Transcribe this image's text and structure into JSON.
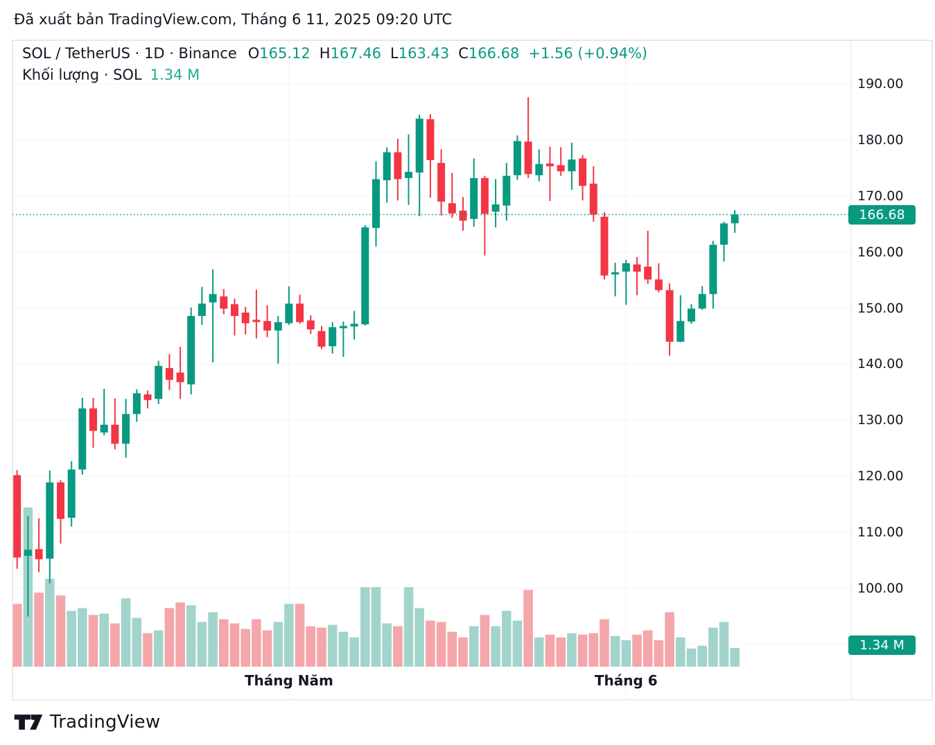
{
  "header": {
    "published_line": "Đã xuất bản TradingView.com, Tháng 6 11, 2025 09:20 UTC"
  },
  "legend": {
    "symbol_line": "SOL / TetherUS · 1D · Binance",
    "o_label": "O",
    "o_value": "165.12",
    "h_label": "H",
    "h_value": "167.46",
    "l_label": "L",
    "l_value": "163.43",
    "c_label": "C",
    "c_value": "166.68",
    "change": "+1.56 (+0.94%)",
    "volume_label": "Khối lượng · SOL",
    "volume_value": "1.34 M"
  },
  "price_axis": {
    "labels": [
      "190.00",
      "180.00",
      "170.00",
      "160.00",
      "150.00",
      "140.00",
      "130.00",
      "120.00",
      "110.00",
      "100.00"
    ],
    "label_values": [
      190,
      180,
      170,
      160,
      150,
      140,
      130,
      120,
      110,
      100
    ],
    "current_price_badge": "166.68",
    "volume_badge": "1.34 M"
  },
  "x_axis": {
    "labels": [
      {
        "text": "Tháng Năm",
        "candle_index": 25
      },
      {
        "text": "Tháng 6",
        "candle_index": 56
      }
    ]
  },
  "footer": {
    "brand": "TradingView"
  },
  "colors": {
    "up": "#089981",
    "down": "#f23645",
    "volume_up": "#a2d4cc",
    "volume_down": "#f4a6aa",
    "grid": "#f0f3fa",
    "frame": "#e0e3eb",
    "text": "#131722",
    "accent_teal": "#089981",
    "badge_bg": "#089981",
    "badge_text": "#ffffff"
  },
  "chart_data": {
    "type": "candlestick_with_volume",
    "title": "SOL / TetherUS · 1D · Binance",
    "interval": "1D",
    "current_price": 166.68,
    "current_volume_m": 1.34,
    "price_axis_range": [
      88,
      195
    ],
    "grid_ticks": [
      190,
      180,
      170,
      160,
      150,
      140,
      130,
      120,
      110,
      100,
      90
    ],
    "legend_ohlc": {
      "open": 165.12,
      "high": 167.46,
      "low": 163.43,
      "close": 166.68,
      "change": 1.56,
      "change_pct": 0.94
    },
    "volume_unit": "millions SOL",
    "candles_format": [
      "open",
      "high",
      "low",
      "close",
      "volume_m"
    ],
    "candles": [
      [
        120.2,
        121.1,
        103.5,
        105.5,
        4.5
      ],
      [
        105.8,
        112.9,
        95.0,
        106.9,
        11.4
      ],
      [
        107.0,
        112.5,
        102.9,
        105.2,
        5.3
      ],
      [
        105.3,
        121.0,
        100.9,
        118.9,
        6.3
      ],
      [
        118.9,
        119.3,
        108.0,
        112.4,
        5.1
      ],
      [
        112.6,
        122.7,
        111.0,
        121.2,
        4.0
      ],
      [
        121.2,
        134.0,
        120.3,
        132.1,
        4.2
      ],
      [
        132.1,
        134.0,
        125.1,
        128.1,
        3.7
      ],
      [
        127.8,
        135.6,
        127.3,
        129.2,
        3.8
      ],
      [
        129.2,
        133.9,
        124.8,
        125.8,
        3.1
      ],
      [
        125.8,
        133.8,
        123.3,
        131.1,
        4.9
      ],
      [
        131.1,
        135.5,
        129.7,
        134.8,
        3.5
      ],
      [
        134.6,
        135.3,
        132.1,
        133.6,
        2.4
      ],
      [
        133.8,
        140.6,
        132.9,
        139.7,
        2.6
      ],
      [
        139.3,
        141.8,
        135.4,
        137.2,
        4.2
      ],
      [
        138.5,
        143.1,
        133.8,
        136.8,
        4.6
      ],
      [
        136.4,
        150.1,
        134.6,
        148.6,
        4.4
      ],
      [
        148.6,
        153.8,
        147.0,
        150.8,
        3.2
      ],
      [
        151.0,
        156.9,
        140.3,
        152.5,
        3.9
      ],
      [
        152.1,
        153.4,
        148.9,
        149.9,
        3.4
      ],
      [
        150.7,
        151.7,
        145.1,
        148.6,
        3.1
      ],
      [
        149.2,
        150.2,
        145.3,
        147.3,
        2.7
      ],
      [
        147.9,
        153.3,
        144.6,
        147.5,
        3.4
      ],
      [
        147.7,
        150.5,
        144.8,
        146.0,
        2.6
      ],
      [
        146.0,
        148.6,
        140.1,
        147.5,
        3.2
      ],
      [
        147.3,
        153.9,
        147.0,
        150.8,
        4.5
      ],
      [
        150.8,
        152.4,
        147.2,
        147.5,
        4.5
      ],
      [
        147.8,
        148.7,
        145.4,
        146.2,
        2.9
      ],
      [
        145.9,
        146.8,
        142.7,
        143.1,
        2.8
      ],
      [
        143.2,
        147.5,
        141.9,
        146.6,
        3.0
      ],
      [
        146.4,
        147.6,
        141.3,
        146.8,
        2.5
      ],
      [
        146.7,
        149.5,
        144.4,
        147.2,
        2.1
      ],
      [
        147.1,
        164.8,
        146.9,
        164.4,
        5.7
      ],
      [
        164.3,
        176.2,
        161.0,
        173.0,
        5.7
      ],
      [
        172.8,
        178.7,
        168.8,
        177.8,
        3.1
      ],
      [
        177.8,
        180.2,
        169.2,
        173.0,
        2.9
      ],
      [
        173.2,
        181.0,
        168.4,
        174.3,
        5.7
      ],
      [
        174.2,
        184.5,
        166.4,
        183.8,
        4.2
      ],
      [
        183.7,
        184.6,
        169.7,
        176.4,
        3.3
      ],
      [
        175.9,
        178.3,
        166.5,
        169.0,
        3.2
      ],
      [
        168.7,
        174.1,
        166.1,
        166.9,
        2.5
      ],
      [
        167.4,
        169.8,
        163.8,
        165.6,
        2.1
      ],
      [
        165.9,
        176.7,
        164.5,
        173.2,
        2.9
      ],
      [
        173.2,
        173.6,
        159.4,
        166.8,
        3.7
      ],
      [
        167.2,
        173.0,
        164.4,
        168.5,
        2.9
      ],
      [
        168.3,
        175.9,
        165.6,
        173.6,
        4.0
      ],
      [
        173.7,
        180.8,
        172.9,
        179.8,
        3.3
      ],
      [
        179.7,
        187.6,
        173.2,
        173.9,
        5.5
      ],
      [
        173.7,
        178.3,
        172.6,
        175.7,
        2.1
      ],
      [
        175.8,
        178.8,
        169.1,
        175.3,
        2.3
      ],
      [
        175.5,
        178.7,
        173.6,
        174.4,
        2.1
      ],
      [
        174.4,
        179.5,
        171.1,
        176.5,
        2.4
      ],
      [
        176.7,
        177.3,
        169.2,
        171.8,
        2.3
      ],
      [
        172.2,
        175.3,
        165.4,
        166.7,
        2.4
      ],
      [
        166.3,
        167.1,
        155.1,
        155.8,
        3.4
      ],
      [
        156.0,
        158.1,
        152.1,
        156.4,
        2.2
      ],
      [
        156.5,
        158.6,
        150.6,
        158.0,
        1.9
      ],
      [
        157.8,
        159.1,
        152.3,
        156.5,
        2.3
      ],
      [
        157.4,
        163.8,
        154.3,
        155.1,
        2.6
      ],
      [
        155.1,
        158.0,
        152.8,
        153.2,
        1.9
      ],
      [
        153.2,
        154.4,
        141.5,
        144.0,
        3.9
      ],
      [
        144.0,
        152.3,
        143.9,
        147.7,
        2.1
      ],
      [
        147.6,
        150.7,
        147.2,
        149.9,
        1.3
      ],
      [
        149.9,
        153.9,
        149.7,
        152.5,
        1.5
      ],
      [
        152.5,
        162.0,
        149.9,
        161.3,
        2.8
      ],
      [
        161.3,
        165.4,
        158.3,
        165.1,
        3.2
      ],
      [
        165.12,
        167.46,
        163.43,
        166.68,
        1.34
      ]
    ]
  }
}
